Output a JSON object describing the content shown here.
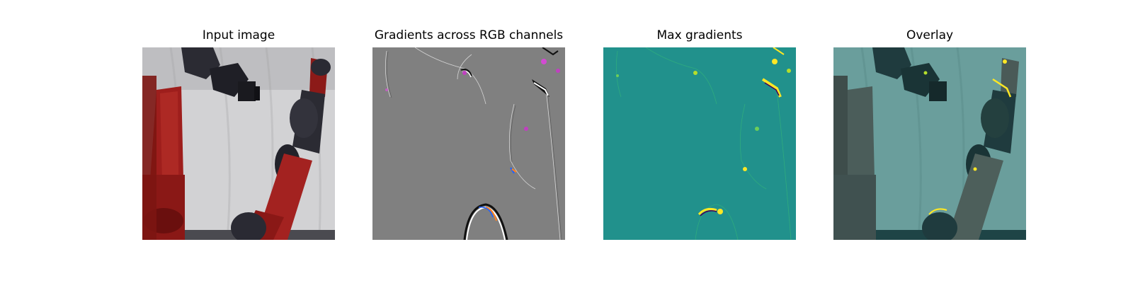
{
  "panels": [
    {
      "title": "Input image"
    },
    {
      "title": "Gradients across RGB channels"
    },
    {
      "title": "Max gradients"
    },
    {
      "title": "Overlay"
    }
  ],
  "colors": {
    "background": "#ffffff",
    "robot_red": "#a8201e",
    "robot_dark": "#2a2a33",
    "curtain": "#d4d4d6",
    "gradient_gray": "#808080",
    "viridis_teal": "#21918c",
    "viridis_yellow": "#fde725",
    "overlay_tint": "#2a8f8c"
  }
}
